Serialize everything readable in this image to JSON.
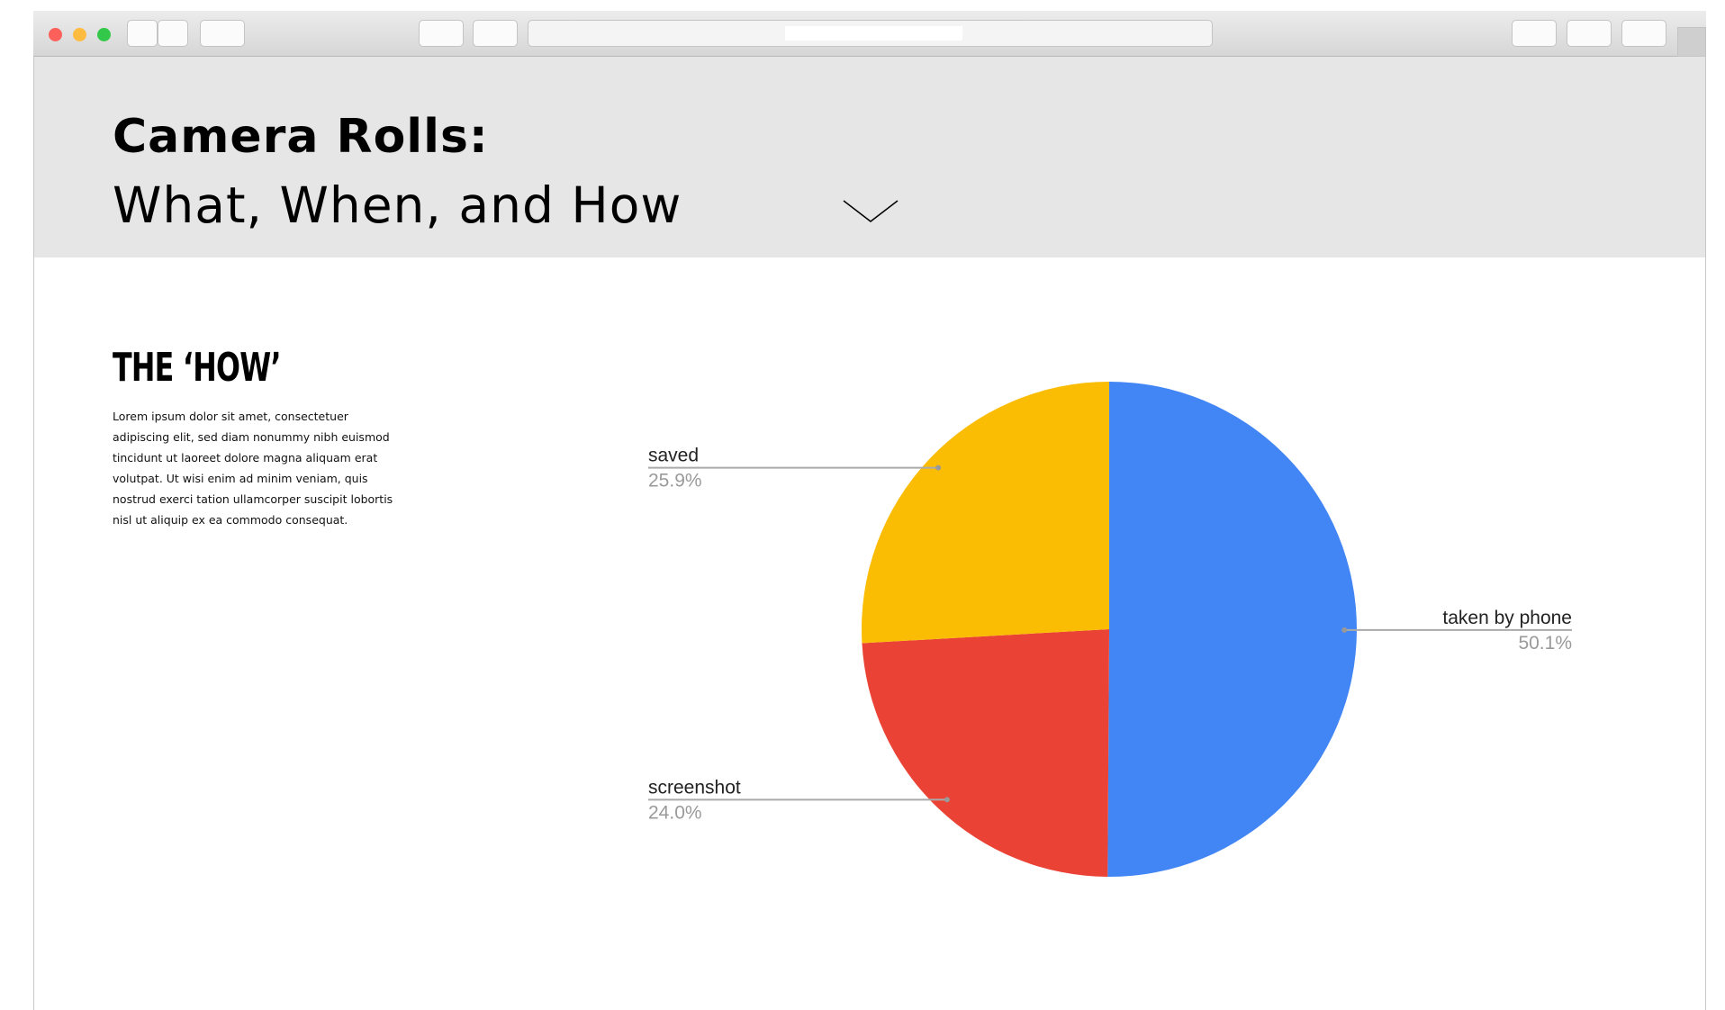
{
  "page": {
    "title": "Camera Rolls:",
    "subtitle": "What, When, and How",
    "section_title": "THE ‘HOW’",
    "paragraph": "Lorem ipsum dolor sit amet, consectetuer adipiscing elit, sed diam nonummy nibh euismod tincidunt ut laoreet dolore magna aliquam erat volutpat. Ut wisi enim ad minim veniam, quis nostrud exerci tation ullamcorper suscipit lobortis nisl ut aliquip ex ea commodo consequat."
  },
  "chart_data": {
    "type": "pie",
    "categories": [
      "taken by phone",
      "screenshot",
      "saved"
    ],
    "values": [
      50.1,
      24.0,
      25.9
    ],
    "value_labels": [
      "50.1%",
      "24.0%",
      "25.9%"
    ],
    "colors": [
      "#4285f4",
      "#ea4335",
      "#fbbc04"
    ]
  }
}
